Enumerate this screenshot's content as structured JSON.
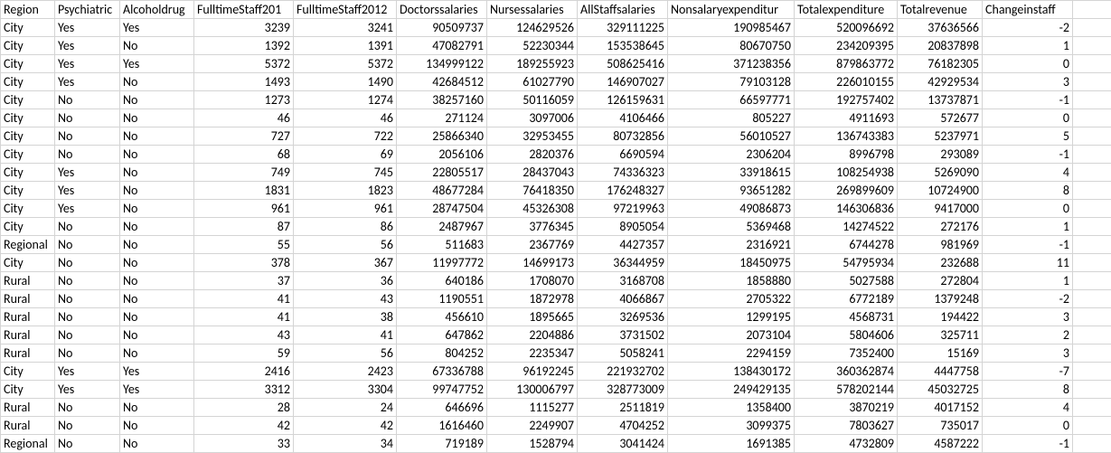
{
  "table": {
    "columns": [
      {
        "key": "Region",
        "label": "Region",
        "type": "text"
      },
      {
        "key": "Psychiatric",
        "label": "Psychiatric",
        "type": "text"
      },
      {
        "key": "Alcoholdrug",
        "label": "Alcoholdrug",
        "type": "text"
      },
      {
        "key": "FulltimeStaff2011",
        "label": "FulltimeStaff201",
        "type": "num"
      },
      {
        "key": "FulltimeStaff2012",
        "label": "FulltimeStaff2012",
        "type": "num"
      },
      {
        "key": "Doctorssalaries",
        "label": "Doctorssalaries",
        "type": "num"
      },
      {
        "key": "Nursessalaries",
        "label": "Nursessalaries",
        "type": "num"
      },
      {
        "key": "AllStaffsalaries",
        "label": "AllStaffsalaries",
        "type": "num"
      },
      {
        "key": "Nonsalaryexpenditure",
        "label": "Nonsalaryexpenditur",
        "type": "num"
      },
      {
        "key": "Totalexpenditure",
        "label": "Totalexpenditure",
        "type": "num"
      },
      {
        "key": "Totalrevenue",
        "label": "Totalrevenue",
        "type": "num"
      },
      {
        "key": "Changeinstaff",
        "label": "Changeinstaff",
        "type": "num"
      },
      {
        "key": "blank",
        "label": "",
        "type": "text"
      }
    ],
    "rows": [
      [
        "City",
        "Yes",
        "Yes",
        "3239",
        "3241",
        "90509737",
        "124629526",
        "329111225",
        "190985467",
        "520096692",
        "37636566",
        "-2",
        ""
      ],
      [
        "City",
        "Yes",
        "No",
        "1392",
        "1391",
        "47082791",
        "52230344",
        "153538645",
        "80670750",
        "234209395",
        "20837898",
        "1",
        ""
      ],
      [
        "City",
        "Yes",
        "Yes",
        "5372",
        "5372",
        "134999122",
        "189255923",
        "508625416",
        "371238356",
        "879863772",
        "76182305",
        "0",
        ""
      ],
      [
        "City",
        "Yes",
        "No",
        "1493",
        "1490",
        "42684512",
        "61027790",
        "146907027",
        "79103128",
        "226010155",
        "42929534",
        "3",
        ""
      ],
      [
        "City",
        "No",
        "No",
        "1273",
        "1274",
        "38257160",
        "50116059",
        "126159631",
        "66597771",
        "192757402",
        "13737871",
        "-1",
        ""
      ],
      [
        "City",
        "No",
        "No",
        "46",
        "46",
        "271124",
        "3097006",
        "4106466",
        "805227",
        "4911693",
        "572677",
        "0",
        ""
      ],
      [
        "City",
        "No",
        "No",
        "727",
        "722",
        "25866340",
        "32953455",
        "80732856",
        "56010527",
        "136743383",
        "5237971",
        "5",
        ""
      ],
      [
        "City",
        "No",
        "No",
        "68",
        "69",
        "2056106",
        "2820376",
        "6690594",
        "2306204",
        "8996798",
        "293089",
        "-1",
        ""
      ],
      [
        "City",
        "Yes",
        "No",
        "749",
        "745",
        "22805517",
        "28437043",
        "74336323",
        "33918615",
        "108254938",
        "5269090",
        "4",
        ""
      ],
      [
        "City",
        "Yes",
        "No",
        "1831",
        "1823",
        "48677284",
        "76418350",
        "176248327",
        "93651282",
        "269899609",
        "10724900",
        "8",
        ""
      ],
      [
        "City",
        "Yes",
        "No",
        "961",
        "961",
        "28747504",
        "45326308",
        "97219963",
        "49086873",
        "146306836",
        "9417000",
        "0",
        ""
      ],
      [
        "City",
        "No",
        "No",
        "87",
        "86",
        "2487967",
        "3776345",
        "8905054",
        "5369468",
        "14274522",
        "272176",
        "1",
        ""
      ],
      [
        "Regional",
        "No",
        "No",
        "55",
        "56",
        "511683",
        "2367769",
        "4427357",
        "2316921",
        "6744278",
        "981969",
        "-1",
        ""
      ],
      [
        "City",
        "No",
        "No",
        "378",
        "367",
        "11997772",
        "14699173",
        "36344959",
        "18450975",
        "54795934",
        "232688",
        "11",
        ""
      ],
      [
        "Rural",
        "No",
        "No",
        "37",
        "36",
        "640186",
        "1708070",
        "3168708",
        "1858880",
        "5027588",
        "272804",
        "1",
        ""
      ],
      [
        "Rural",
        "No",
        "No",
        "41",
        "43",
        "1190551",
        "1872978",
        "4066867",
        "2705322",
        "6772189",
        "1379248",
        "-2",
        ""
      ],
      [
        "Rural",
        "No",
        "No",
        "41",
        "38",
        "456610",
        "1895665",
        "3269536",
        "1299195",
        "4568731",
        "194422",
        "3",
        ""
      ],
      [
        "Rural",
        "No",
        "No",
        "43",
        "41",
        "647862",
        "2204886",
        "3731502",
        "2073104",
        "5804606",
        "325711",
        "2",
        ""
      ],
      [
        "Rural",
        "No",
        "No",
        "59",
        "56",
        "804252",
        "2235347",
        "5058241",
        "2294159",
        "7352400",
        "15169",
        "3",
        ""
      ],
      [
        "City",
        "Yes",
        "Yes",
        "2416",
        "2423",
        "67336788",
        "96192245",
        "221932702",
        "138430172",
        "360362874",
        "4447758",
        "-7",
        ""
      ],
      [
        "City",
        "Yes",
        "Yes",
        "3312",
        "3304",
        "99747752",
        "130006797",
        "328773009",
        "249429135",
        "578202144",
        "45032725",
        "8",
        ""
      ],
      [
        "Rural",
        "No",
        "No",
        "28",
        "24",
        "646696",
        "1115277",
        "2511819",
        "1358400",
        "3870219",
        "4017152",
        "4",
        ""
      ],
      [
        "Rural",
        "No",
        "No",
        "42",
        "42",
        "1616460",
        "2249907",
        "4704252",
        "3099375",
        "7803627",
        "735017",
        "0",
        ""
      ],
      [
        "Regional",
        "No",
        "No",
        "33",
        "34",
        "719189",
        "1528794",
        "3041424",
        "1691385",
        "4732809",
        "4587222",
        "-1",
        ""
      ]
    ]
  }
}
